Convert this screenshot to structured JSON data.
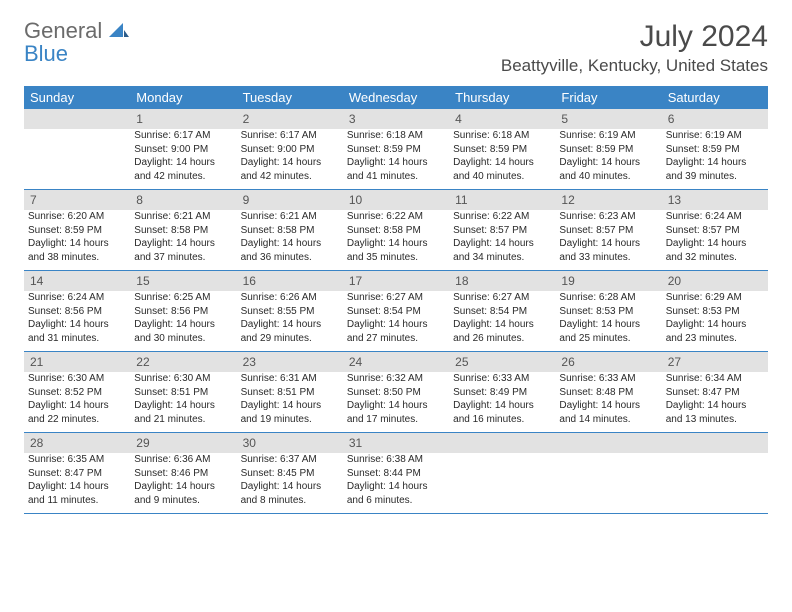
{
  "logo": {
    "general": "General",
    "blue": "Blue"
  },
  "title": "July 2024",
  "location": "Beattyville, Kentucky, United States",
  "colors": {
    "header_bg": "#3a84c5",
    "header_text": "#ffffff",
    "daynum_bg": "#e2e2e2",
    "border": "#3a84c5",
    "logo_gray": "#6b6b6b",
    "logo_blue": "#3a84c5"
  },
  "typography": {
    "title_fontsize": 30,
    "location_fontsize": 17,
    "dayheader_fontsize": 13,
    "cell_fontsize": 10
  },
  "day_names": [
    "Sunday",
    "Monday",
    "Tuesday",
    "Wednesday",
    "Thursday",
    "Friday",
    "Saturday"
  ],
  "weeks": [
    [
      {
        "num": "",
        "sunrise": "",
        "sunset": "",
        "daylight": ""
      },
      {
        "num": "1",
        "sunrise": "Sunrise: 6:17 AM",
        "sunset": "Sunset: 9:00 PM",
        "daylight": "Daylight: 14 hours and 42 minutes."
      },
      {
        "num": "2",
        "sunrise": "Sunrise: 6:17 AM",
        "sunset": "Sunset: 9:00 PM",
        "daylight": "Daylight: 14 hours and 42 minutes."
      },
      {
        "num": "3",
        "sunrise": "Sunrise: 6:18 AM",
        "sunset": "Sunset: 8:59 PM",
        "daylight": "Daylight: 14 hours and 41 minutes."
      },
      {
        "num": "4",
        "sunrise": "Sunrise: 6:18 AM",
        "sunset": "Sunset: 8:59 PM",
        "daylight": "Daylight: 14 hours and 40 minutes."
      },
      {
        "num": "5",
        "sunrise": "Sunrise: 6:19 AM",
        "sunset": "Sunset: 8:59 PM",
        "daylight": "Daylight: 14 hours and 40 minutes."
      },
      {
        "num": "6",
        "sunrise": "Sunrise: 6:19 AM",
        "sunset": "Sunset: 8:59 PM",
        "daylight": "Daylight: 14 hours and 39 minutes."
      }
    ],
    [
      {
        "num": "7",
        "sunrise": "Sunrise: 6:20 AM",
        "sunset": "Sunset: 8:59 PM",
        "daylight": "Daylight: 14 hours and 38 minutes."
      },
      {
        "num": "8",
        "sunrise": "Sunrise: 6:21 AM",
        "sunset": "Sunset: 8:58 PM",
        "daylight": "Daylight: 14 hours and 37 minutes."
      },
      {
        "num": "9",
        "sunrise": "Sunrise: 6:21 AM",
        "sunset": "Sunset: 8:58 PM",
        "daylight": "Daylight: 14 hours and 36 minutes."
      },
      {
        "num": "10",
        "sunrise": "Sunrise: 6:22 AM",
        "sunset": "Sunset: 8:58 PM",
        "daylight": "Daylight: 14 hours and 35 minutes."
      },
      {
        "num": "11",
        "sunrise": "Sunrise: 6:22 AM",
        "sunset": "Sunset: 8:57 PM",
        "daylight": "Daylight: 14 hours and 34 minutes."
      },
      {
        "num": "12",
        "sunrise": "Sunrise: 6:23 AM",
        "sunset": "Sunset: 8:57 PM",
        "daylight": "Daylight: 14 hours and 33 minutes."
      },
      {
        "num": "13",
        "sunrise": "Sunrise: 6:24 AM",
        "sunset": "Sunset: 8:57 PM",
        "daylight": "Daylight: 14 hours and 32 minutes."
      }
    ],
    [
      {
        "num": "14",
        "sunrise": "Sunrise: 6:24 AM",
        "sunset": "Sunset: 8:56 PM",
        "daylight": "Daylight: 14 hours and 31 minutes."
      },
      {
        "num": "15",
        "sunrise": "Sunrise: 6:25 AM",
        "sunset": "Sunset: 8:56 PM",
        "daylight": "Daylight: 14 hours and 30 minutes."
      },
      {
        "num": "16",
        "sunrise": "Sunrise: 6:26 AM",
        "sunset": "Sunset: 8:55 PM",
        "daylight": "Daylight: 14 hours and 29 minutes."
      },
      {
        "num": "17",
        "sunrise": "Sunrise: 6:27 AM",
        "sunset": "Sunset: 8:54 PM",
        "daylight": "Daylight: 14 hours and 27 minutes."
      },
      {
        "num": "18",
        "sunrise": "Sunrise: 6:27 AM",
        "sunset": "Sunset: 8:54 PM",
        "daylight": "Daylight: 14 hours and 26 minutes."
      },
      {
        "num": "19",
        "sunrise": "Sunrise: 6:28 AM",
        "sunset": "Sunset: 8:53 PM",
        "daylight": "Daylight: 14 hours and 25 minutes."
      },
      {
        "num": "20",
        "sunrise": "Sunrise: 6:29 AM",
        "sunset": "Sunset: 8:53 PM",
        "daylight": "Daylight: 14 hours and 23 minutes."
      }
    ],
    [
      {
        "num": "21",
        "sunrise": "Sunrise: 6:30 AM",
        "sunset": "Sunset: 8:52 PM",
        "daylight": "Daylight: 14 hours and 22 minutes."
      },
      {
        "num": "22",
        "sunrise": "Sunrise: 6:30 AM",
        "sunset": "Sunset: 8:51 PM",
        "daylight": "Daylight: 14 hours and 21 minutes."
      },
      {
        "num": "23",
        "sunrise": "Sunrise: 6:31 AM",
        "sunset": "Sunset: 8:51 PM",
        "daylight": "Daylight: 14 hours and 19 minutes."
      },
      {
        "num": "24",
        "sunrise": "Sunrise: 6:32 AM",
        "sunset": "Sunset: 8:50 PM",
        "daylight": "Daylight: 14 hours and 17 minutes."
      },
      {
        "num": "25",
        "sunrise": "Sunrise: 6:33 AM",
        "sunset": "Sunset: 8:49 PM",
        "daylight": "Daylight: 14 hours and 16 minutes."
      },
      {
        "num": "26",
        "sunrise": "Sunrise: 6:33 AM",
        "sunset": "Sunset: 8:48 PM",
        "daylight": "Daylight: 14 hours and 14 minutes."
      },
      {
        "num": "27",
        "sunrise": "Sunrise: 6:34 AM",
        "sunset": "Sunset: 8:47 PM",
        "daylight": "Daylight: 14 hours and 13 minutes."
      }
    ],
    [
      {
        "num": "28",
        "sunrise": "Sunrise: 6:35 AM",
        "sunset": "Sunset: 8:47 PM",
        "daylight": "Daylight: 14 hours and 11 minutes."
      },
      {
        "num": "29",
        "sunrise": "Sunrise: 6:36 AM",
        "sunset": "Sunset: 8:46 PM",
        "daylight": "Daylight: 14 hours and 9 minutes."
      },
      {
        "num": "30",
        "sunrise": "Sunrise: 6:37 AM",
        "sunset": "Sunset: 8:45 PM",
        "daylight": "Daylight: 14 hours and 8 minutes."
      },
      {
        "num": "31",
        "sunrise": "Sunrise: 6:38 AM",
        "sunset": "Sunset: 8:44 PM",
        "daylight": "Daylight: 14 hours and 6 minutes."
      },
      {
        "num": "",
        "sunrise": "",
        "sunset": "",
        "daylight": ""
      },
      {
        "num": "",
        "sunrise": "",
        "sunset": "",
        "daylight": ""
      },
      {
        "num": "",
        "sunrise": "",
        "sunset": "",
        "daylight": ""
      }
    ]
  ]
}
